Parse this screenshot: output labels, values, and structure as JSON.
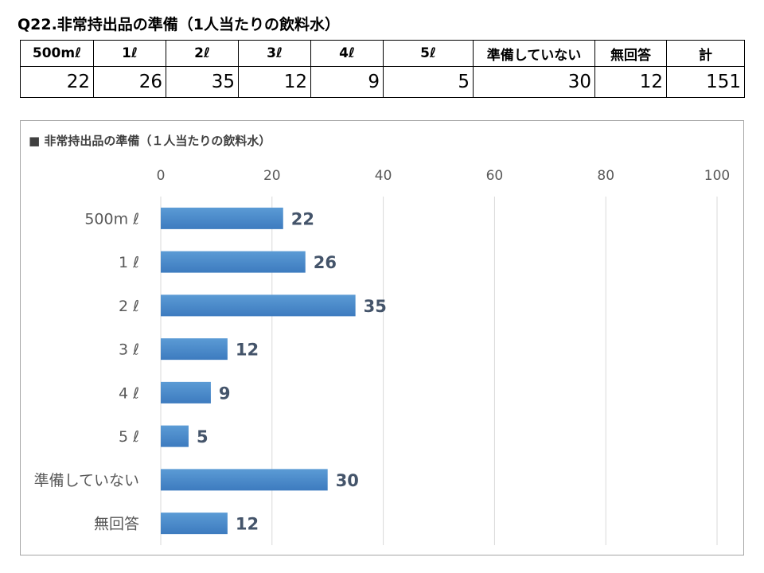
{
  "page": {
    "title": "Q22.非常持出品の準備（1人当たりの飲料水）"
  },
  "table": {
    "headers": [
      "500mℓ",
      "1ℓ",
      "2ℓ",
      "3ℓ",
      "4ℓ",
      "5ℓ",
      "準備していない",
      "無回答",
      "計"
    ],
    "values": [
      "22",
      "26",
      "35",
      "12",
      "9",
      "5",
      "30",
      "12",
      "151"
    ]
  },
  "chart_data": {
    "type": "bar",
    "orientation": "horizontal",
    "title": "非常持出品の準備（１人当たりの飲料水）",
    "title_marker": "■",
    "categories": [
      "500m ℓ",
      "1 ℓ",
      "2 ℓ",
      "3 ℓ",
      "4 ℓ",
      "5 ℓ",
      "準備していない",
      "無回答"
    ],
    "values": [
      22,
      26,
      35,
      12,
      9,
      5,
      30,
      12
    ],
    "xlim": [
      0,
      100
    ],
    "ticks": [
      0,
      20,
      40,
      60,
      80,
      100
    ],
    "tick_position": "top",
    "grid": true,
    "legend": "none",
    "data_labels": true,
    "colors": {
      "bar_top": "#5b9bd5",
      "bar_bottom": "#3d7bbf",
      "grid": "#d9d9d9",
      "tick_text": "#595959",
      "category_text": "#595959",
      "data_label": "#44546a"
    }
  }
}
